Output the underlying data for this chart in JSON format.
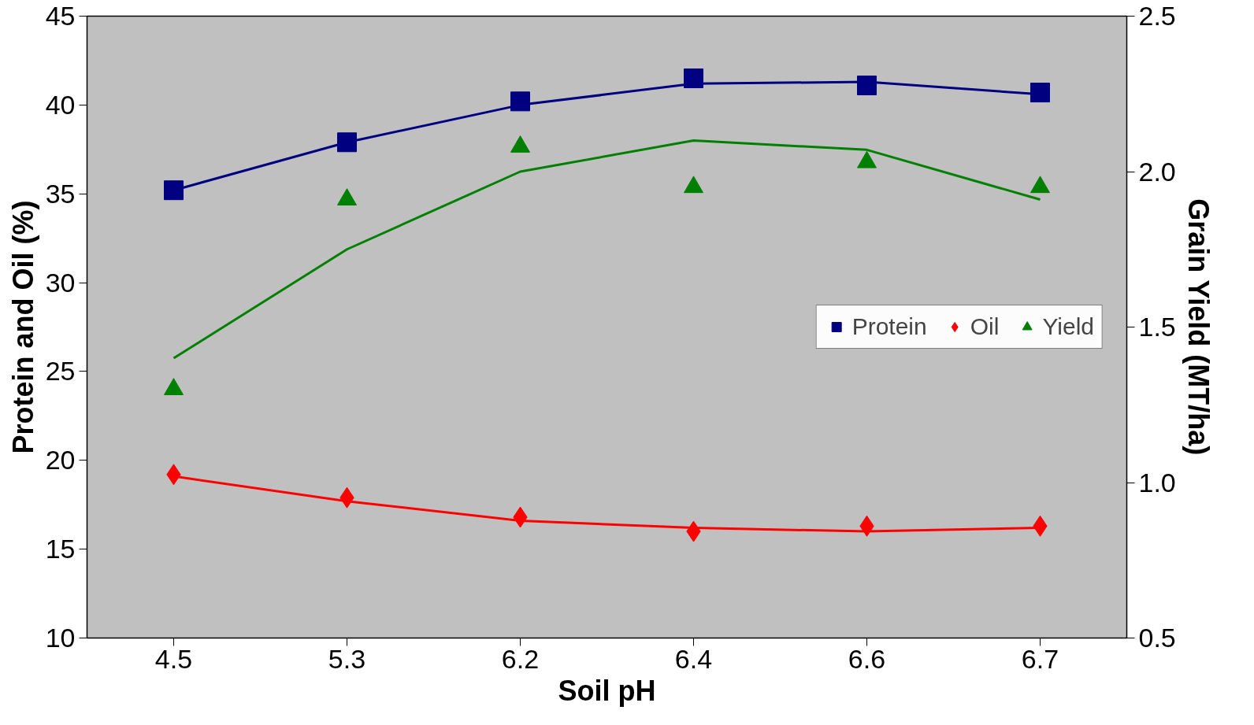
{
  "chart_data": {
    "type": "scatter",
    "xlabel": "Soil pH",
    "ylabel": "Protein and Oil (%)",
    "y2label": "Grain Yield (MT/ha)",
    "categories": [
      "4.5",
      "5.3",
      "6.2",
      "6.4",
      "6.6",
      "6.7"
    ],
    "ylim": [
      10,
      45
    ],
    "yticks": [
      10,
      15,
      20,
      25,
      30,
      35,
      40,
      45
    ],
    "y2lim": [
      0.5,
      2.5
    ],
    "y2ticks": [
      {
        "value": 0.5,
        "label": "0.5"
      },
      {
        "value": 1.0,
        "label": "1.0"
      },
      {
        "value": 1.5,
        "label": "1.5"
      },
      {
        "value": 2.0,
        "label": "2.0"
      },
      {
        "value": 2.5,
        "label": "2.5"
      }
    ],
    "grid": false,
    "legend": "right",
    "series": [
      {
        "name": "Protein",
        "marker": "square",
        "color": "#000080",
        "values": [
          35.2,
          37.9,
          40.2,
          41.5,
          41.1,
          40.7
        ]
      },
      {
        "name": "Oil",
        "marker": "diamond",
        "color": "#ff0000",
        "values": [
          19.2,
          17.9,
          16.8,
          16.0,
          16.3,
          16.3
        ]
      },
      {
        "name": "Yield",
        "marker": "triangle",
        "color": "#008000",
        "axis": "y2",
        "values": [
          1.3,
          1.91,
          2.08,
          1.95,
          2.03,
          1.95
        ]
      },
      {
        "type": "line",
        "color": "#000080",
        "values": [
          35.2,
          37.9,
          40.0,
          41.2,
          41.3,
          40.6
        ]
      },
      {
        "type": "line",
        "color": "#ff0000",
        "values": [
          19.1,
          17.7,
          16.6,
          16.2,
          16.0,
          16.2
        ]
      },
      {
        "type": "line",
        "color": "#008000",
        "axis": "y2",
        "values": [
          1.4,
          1.75,
          2.0,
          2.1,
          2.07,
          1.91
        ]
      }
    ]
  }
}
